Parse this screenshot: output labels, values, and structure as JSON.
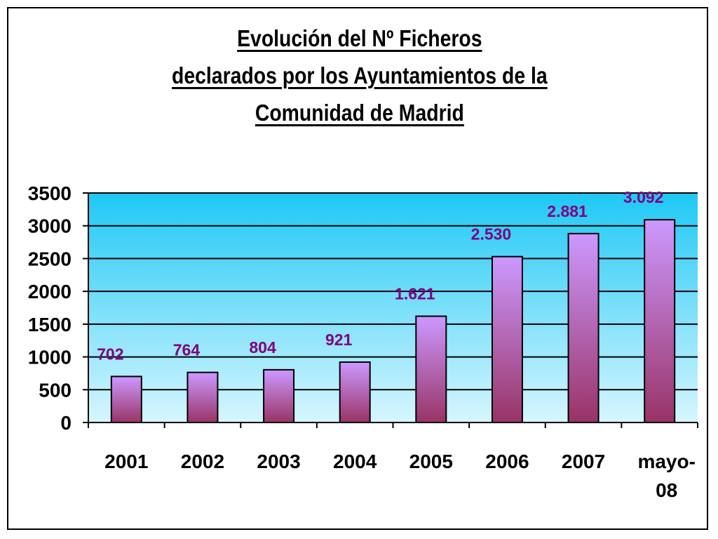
{
  "chart_data": {
    "type": "bar",
    "title": "Evolución del Nº Ficheros declarados por los Ayuntamientos de la Comunidad de Madrid",
    "title_lines": [
      "Evolución del Nº Ficheros",
      "declarados por los Ayuntamientos de la ",
      "Comunidad de Madrid"
    ],
    "categories": [
      "2001",
      "2002",
      "2003",
      "2004",
      "2005",
      "2006",
      "2007",
      "mayo-08"
    ],
    "category_display_lines": [
      [
        "2001"
      ],
      [
        "2002"
      ],
      [
        "2003"
      ],
      [
        "2004"
      ],
      [
        "2005"
      ],
      [
        "2006"
      ],
      [
        "2007"
      ],
      [
        "mayo-",
        "08"
      ]
    ],
    "values": [
      702,
      764,
      804,
      921,
      1621,
      2530,
      2881,
      3092
    ],
    "value_labels": [
      "702",
      "764",
      "804",
      "921",
      "1.621",
      "2.530",
      "2.881",
      "3.092"
    ],
    "ylim": [
      0,
      3500
    ],
    "yticks": [
      0,
      500,
      1000,
      1500,
      2000,
      2500,
      3000,
      3500
    ],
    "xlabel": "",
    "ylabel": "",
    "grid": true,
    "legend": "none",
    "colors": {
      "bar_top": "#cc99ff",
      "bar_bottom": "#993366",
      "plot_bg_top": "#1ec8f5",
      "plot_bg_bottom": "#d7f6ff",
      "value_label": "#800080"
    }
  }
}
